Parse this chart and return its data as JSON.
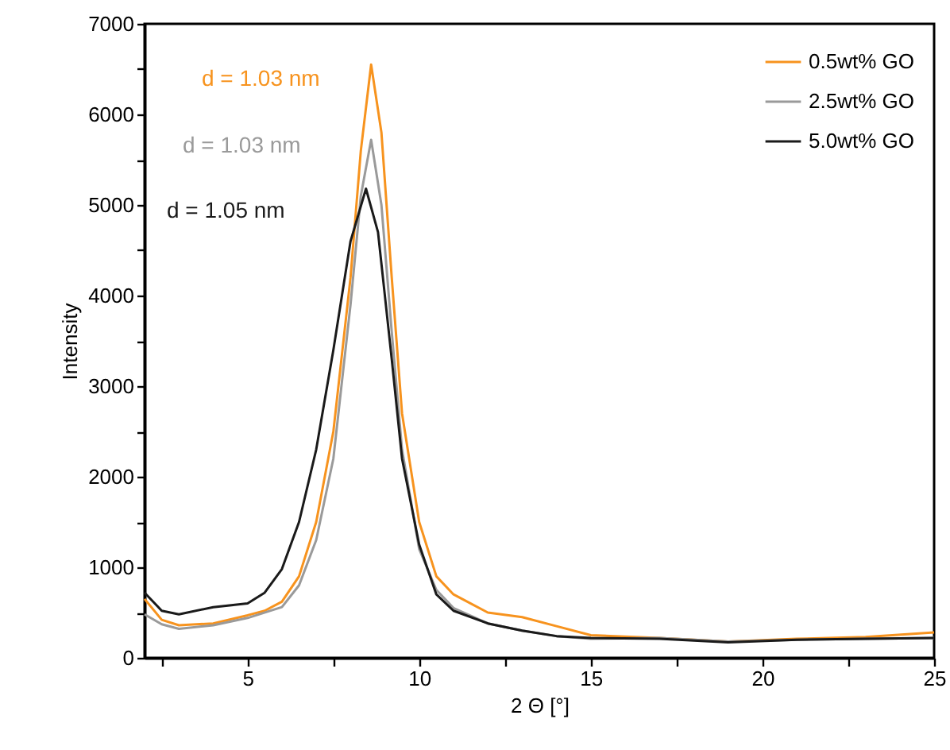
{
  "chart_data": {
    "type": "line",
    "xlabel": "2 Θ [°]",
    "ylabel": "Intensity",
    "xlim": [
      2,
      25
    ],
    "ylim": [
      0,
      7000
    ],
    "xticks": [
      {
        "value": 2.5,
        "label": null
      },
      5,
      {
        "value": 7.5,
        "label": null
      },
      10,
      {
        "value": 12.5,
        "label": null
      },
      15,
      {
        "value": 17.5,
        "label": null
      },
      20,
      {
        "value": 22.5,
        "label": null
      },
      25
    ],
    "yticks": [
      0,
      {
        "value": 500,
        "label": null
      },
      1000,
      {
        "value": 1500,
        "label": null
      },
      2000,
      {
        "value": 2500,
        "label": null
      },
      3000,
      {
        "value": 3500,
        "label": null
      },
      4000,
      {
        "value": 4500,
        "label": null
      },
      5000,
      {
        "value": 5500,
        "label": null
      },
      6000,
      {
        "value": 6500,
        "label": null
      },
      7000
    ],
    "grid": false,
    "legend": "top right",
    "marker": "none",
    "line_style": "solid",
    "annotations": [
      "d = 1.03 nm",
      "d = 1.03 nm",
      "d = 1.05 nm"
    ],
    "series": [
      {
        "name": "0.5wt% GO",
        "color": "#f7931e",
        "x": [
          2,
          2.5,
          3,
          4,
          5,
          5.5,
          6,
          6.5,
          7,
          7.5,
          8,
          8.3,
          8.6,
          8.9,
          9.2,
          9.5,
          10,
          10.5,
          11,
          12,
          13,
          14,
          15,
          17,
          19,
          21,
          23,
          25
        ],
        "values": [
          650,
          420,
          360,
          380,
          470,
          520,
          620,
          900,
          1500,
          2500,
          4200,
          5600,
          6550,
          5800,
          4200,
          2700,
          1500,
          900,
          700,
          500,
          450,
          350,
          250,
          220,
          180,
          210,
          230,
          280
        ]
      },
      {
        "name": "2.5wt% GO",
        "color": "#9a9a9a",
        "x": [
          2,
          2.5,
          3,
          4,
          5,
          6,
          6.5,
          7,
          7.5,
          8,
          8.3,
          8.6,
          8.9,
          9.2,
          9.5,
          10,
          10.5,
          11,
          12,
          13,
          14,
          15,
          17,
          19,
          21,
          23,
          25
        ],
        "values": [
          480,
          370,
          320,
          360,
          440,
          560,
          800,
          1300,
          2200,
          3900,
          5100,
          5720,
          5000,
          3600,
          2300,
          1200,
          750,
          550,
          380,
          300,
          240,
          210,
          220,
          180,
          200,
          210,
          220
        ]
      },
      {
        "name": "5.0wt% GO",
        "color": "#1a1a1a",
        "x": [
          2,
          2.5,
          3,
          4,
          5,
          5.5,
          6,
          6.5,
          7,
          7.5,
          8,
          8.45,
          8.8,
          9.2,
          9.5,
          10,
          10.5,
          11,
          12,
          13,
          14,
          15,
          17,
          19,
          21,
          23,
          25
        ],
        "values": [
          720,
          520,
          480,
          560,
          600,
          720,
          980,
          1500,
          2300,
          3400,
          4600,
          5180,
          4700,
          3300,
          2200,
          1250,
          700,
          520,
          380,
          300,
          240,
          220,
          210,
          170,
          200,
          210,
          220
        ]
      }
    ]
  }
}
